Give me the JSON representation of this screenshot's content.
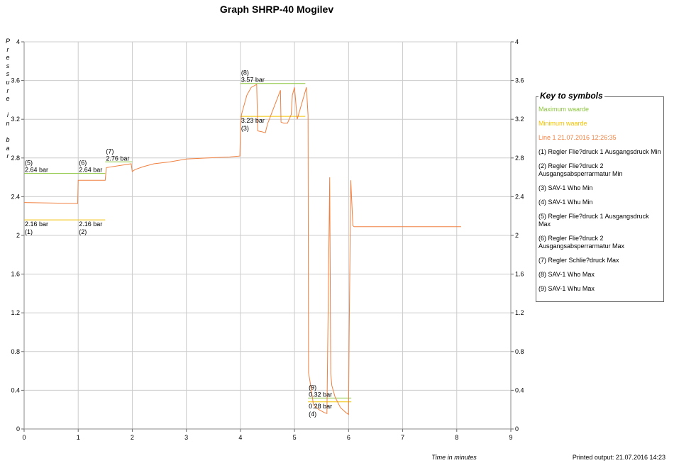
{
  "title": "Graph SHRP-40 Mogilev",
  "ylabel_letters": [
    "P",
    "r",
    "e",
    "s",
    "s",
    "u",
    "r",
    "e",
    "",
    "i",
    "n",
    "",
    "b",
    "a",
    "r"
  ],
  "xlabel": "Time in minutes",
  "printed": "Printed output: 21.07.2016 14:23",
  "legend": {
    "title": "Key to symbols",
    "items": [
      {
        "label": "Maximum waarde",
        "color": "#8cc63f"
      },
      {
        "label": "Minimum waarde",
        "color": "#f2c200"
      },
      {
        "label": "Line 1 21.07.2016 12:26:35",
        "color": "#f08040"
      },
      {
        "label": "(1) Regler Flie?druck 1 Ausgangsdruck Min",
        "color": "#000000"
      },
      {
        "label": "(2) Regler Flie?druck 2 Ausgangsabsperrarmatur Min",
        "color": "#000000"
      },
      {
        "label": "(3) SAV-1 Who Min",
        "color": "#000000"
      },
      {
        "label": "(4) SAV-1 Whu Min",
        "color": "#000000"
      },
      {
        "label": "(5) Regler Flie?druck 1 Ausgangsdruck Max",
        "color": "#000000"
      },
      {
        "label": "(6) Regler Flie?druck 2 Ausgangsabsperrarmatur Max",
        "color": "#000000"
      },
      {
        "label": "(7) Regler Schlie?druck Max",
        "color": "#000000"
      },
      {
        "label": "(8) SAV-1 Who Max",
        "color": "#000000"
      },
      {
        "label": "(9) SAV-1 Whu Max",
        "color": "#000000"
      }
    ]
  },
  "chart_data": {
    "type": "line",
    "title": "Graph SHRP-40 Mogilev",
    "xlabel": "Time in minutes",
    "ylabel": "Pressure in bar",
    "xlim": [
      0,
      9
    ],
    "ylim": [
      0,
      4
    ],
    "x_ticks": [
      "0",
      "1",
      "2",
      "3",
      "4",
      "5",
      "6",
      "7",
      "8",
      "9"
    ],
    "y_ticks": [
      "0",
      "0.4",
      "0.8",
      "1.2",
      "1.6",
      "2",
      "2.4",
      "2.8",
      "3.2",
      "3.6",
      "4"
    ],
    "grid": true,
    "colors": {
      "line": "#f08040",
      "max": "#8cc63f",
      "min": "#f2c200",
      "grid": "#cccccc"
    },
    "series": [
      {
        "name": "Line 1 21.07.2016 12:26:35",
        "x": [
          0,
          0.99,
          1.0,
          1.5,
          1.52,
          1.98,
          2.0,
          2.05,
          2.2,
          2.4,
          2.7,
          3.0,
          3.4,
          3.8,
          3.99,
          4.0,
          4.02,
          4.12,
          4.2,
          4.3,
          4.32,
          4.4,
          4.46,
          4.5,
          4.74,
          4.75,
          4.8,
          4.87,
          4.94,
          4.96,
          5.0,
          5.05,
          5.22,
          5.25,
          5.26,
          5.29,
          5.35,
          5.45,
          5.55,
          5.6,
          5.65,
          5.67,
          5.69,
          5.75,
          5.85,
          5.95,
          6.0,
          6.01,
          6.04,
          6.08,
          6.1,
          6.15,
          6.5,
          7,
          7.5,
          8.08
        ],
        "y": [
          2.34,
          2.33,
          2.57,
          2.57,
          2.7,
          2.74,
          2.66,
          2.68,
          2.71,
          2.74,
          2.76,
          2.79,
          2.8,
          2.81,
          2.82,
          3.1,
          3.25,
          3.45,
          3.53,
          3.56,
          3.08,
          3.07,
          3.06,
          3.15,
          3.5,
          3.17,
          3.16,
          3.16,
          3.25,
          3.45,
          3.53,
          3.2,
          3.53,
          3.24,
          0.58,
          0.48,
          0.25,
          0.2,
          0.17,
          0.16,
          2.6,
          0.57,
          0.45,
          0.33,
          0.22,
          0.17,
          0.15,
          0.95,
          2.57,
          2.1,
          2.09,
          2.09,
          2.09,
          2.09,
          2.09,
          2.09
        ]
      }
    ],
    "thresholds": [
      {
        "id": "(1)",
        "kind": "min",
        "x": [
          0,
          1
        ],
        "y": 2.16,
        "label": "2.16 bar"
      },
      {
        "id": "(2)",
        "kind": "min",
        "x": [
          1,
          1.5
        ],
        "y": 2.16,
        "label": "2.16 bar"
      },
      {
        "id": "(3)",
        "kind": "min",
        "x": [
          4,
          5.2
        ],
        "y": 3.23,
        "label": "3.23 bar"
      },
      {
        "id": "(4)",
        "kind": "min",
        "x": [
          5.25,
          6.05
        ],
        "y": 0.28,
        "label": "0.28 bar"
      },
      {
        "id": "(5)",
        "kind": "max",
        "x": [
          0,
          1
        ],
        "y": 2.64,
        "label": "2.64 bar"
      },
      {
        "id": "(6)",
        "kind": "max",
        "x": [
          1,
          1.5
        ],
        "y": 2.64,
        "label": "2.64 bar"
      },
      {
        "id": "(7)",
        "kind": "max",
        "x": [
          1.5,
          2
        ],
        "y": 2.76,
        "label": "2.76 bar"
      },
      {
        "id": "(8)",
        "kind": "max",
        "x": [
          4,
          5.2
        ],
        "y": 3.57,
        "label": "3.57 bar"
      },
      {
        "id": "(9)",
        "kind": "max",
        "x": [
          5.25,
          6.05
        ],
        "y": 0.32,
        "label": "0.32 bar"
      }
    ]
  }
}
